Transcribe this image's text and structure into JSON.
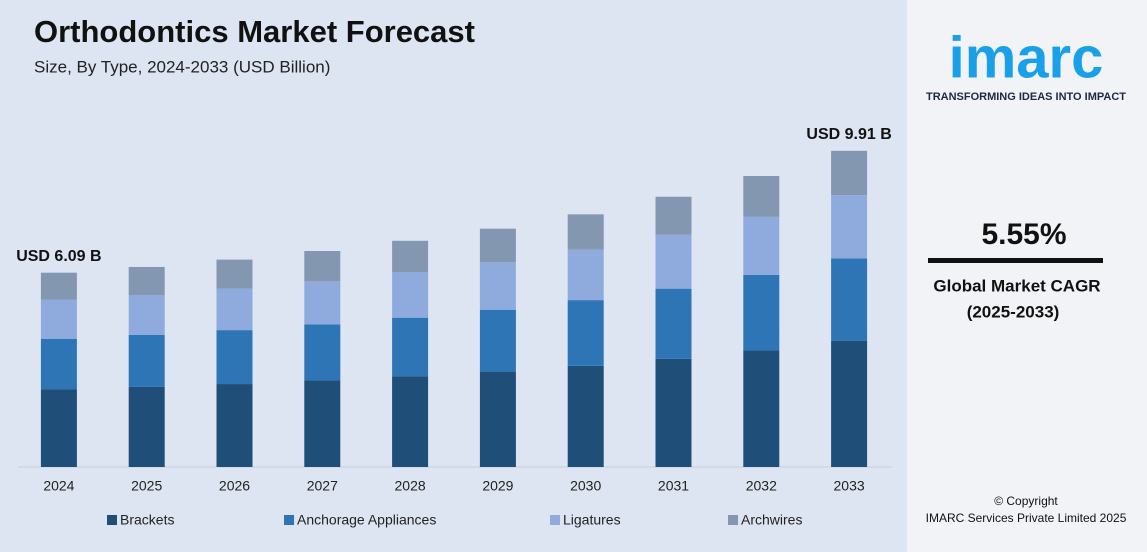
{
  "chart_data": {
    "type": "stacked_bar",
    "title": "Orthodontics Market Forecast",
    "subtitle": "Size, By Type, 2024-2033 (USD Billion)",
    "categories": [
      "2024",
      "2025",
      "2026",
      "2027",
      "2028",
      "2029",
      "2030",
      "2031",
      "2032",
      "2033"
    ],
    "series": [
      {
        "name": "Brackets",
        "color": "#1f4e79",
        "values": [
          2.44,
          2.51,
          2.6,
          2.71,
          2.84,
          2.99,
          3.17,
          3.39,
          3.65,
          3.96
        ]
      },
      {
        "name": "Anchorage Appliances",
        "color": "#2e75b6",
        "values": [
          1.58,
          1.63,
          1.69,
          1.76,
          1.84,
          1.94,
          2.06,
          2.2,
          2.37,
          2.58
        ]
      },
      {
        "name": "Ligatures",
        "color": "#8faadc",
        "values": [
          1.22,
          1.25,
          1.3,
          1.35,
          1.42,
          1.49,
          1.58,
          1.69,
          1.82,
          1.98
        ]
      },
      {
        "name": "Archwires",
        "color": "#8497b0",
        "values": [
          0.85,
          0.88,
          0.91,
          0.95,
          0.99,
          1.05,
          1.11,
          1.19,
          1.28,
          1.39
        ]
      }
    ],
    "ylim": [
      0,
      10.5
    ],
    "annotations": [
      {
        "text": "USD 6.09 B",
        "category": 0
      },
      {
        "text": "USD 9.91 B",
        "category": 9
      }
    ]
  },
  "side_panel": {
    "logo": "imarc",
    "tagline": "TRANSFORMING IDEAS INTO IMPACT",
    "cagr": "5.55%",
    "cagr_label": "Global Market CAGR",
    "cagr_period": "(2025-2033)",
    "copyright": "© Copyright",
    "company": "IMARC Services Private Limited 2025"
  }
}
